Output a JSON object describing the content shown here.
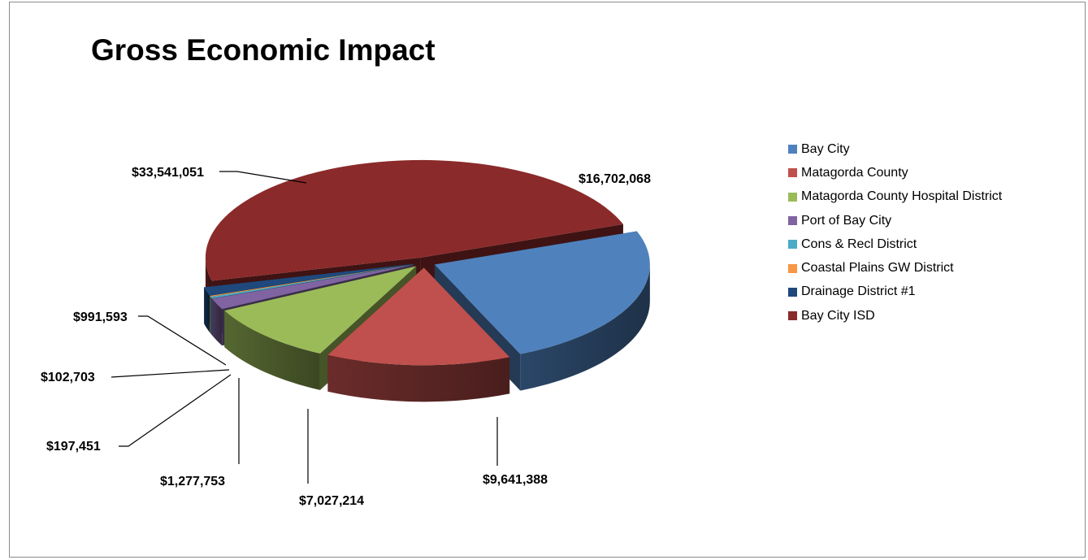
{
  "chart_data": {
    "type": "pie",
    "title": "Gross Economic Impact",
    "legend_position": "right",
    "slices": [
      {
        "name": "Bay City",
        "value": 16702068,
        "label": "$16,702,068",
        "color": "#4F81BD"
      },
      {
        "name": "Matagorda County",
        "value": 9641388,
        "label": "$9,641,388",
        "color": "#C0504D"
      },
      {
        "name": "Matagorda County Hospital District",
        "value": 7027214,
        "label": "$7,027,214",
        "color": "#9BBB59"
      },
      {
        "name": "Port of Bay City",
        "value": 1277753,
        "label": "$1,277,753",
        "color": "#8064A2"
      },
      {
        "name": "Cons & Recl District",
        "value": 197451,
        "label": "$197,451",
        "color": "#4BACC6"
      },
      {
        "name": "Coastal Plains GW District",
        "value": 102703,
        "label": "$102,703",
        "color": "#F79646"
      },
      {
        "name": "Drainage District #1",
        "value": 991593,
        "label": "$991,593",
        "color": "#1F497D"
      },
      {
        "name": "Bay City ISD",
        "value": 33541051,
        "label": "$33,541,051",
        "color": "#8B2A2A"
      }
    ]
  }
}
